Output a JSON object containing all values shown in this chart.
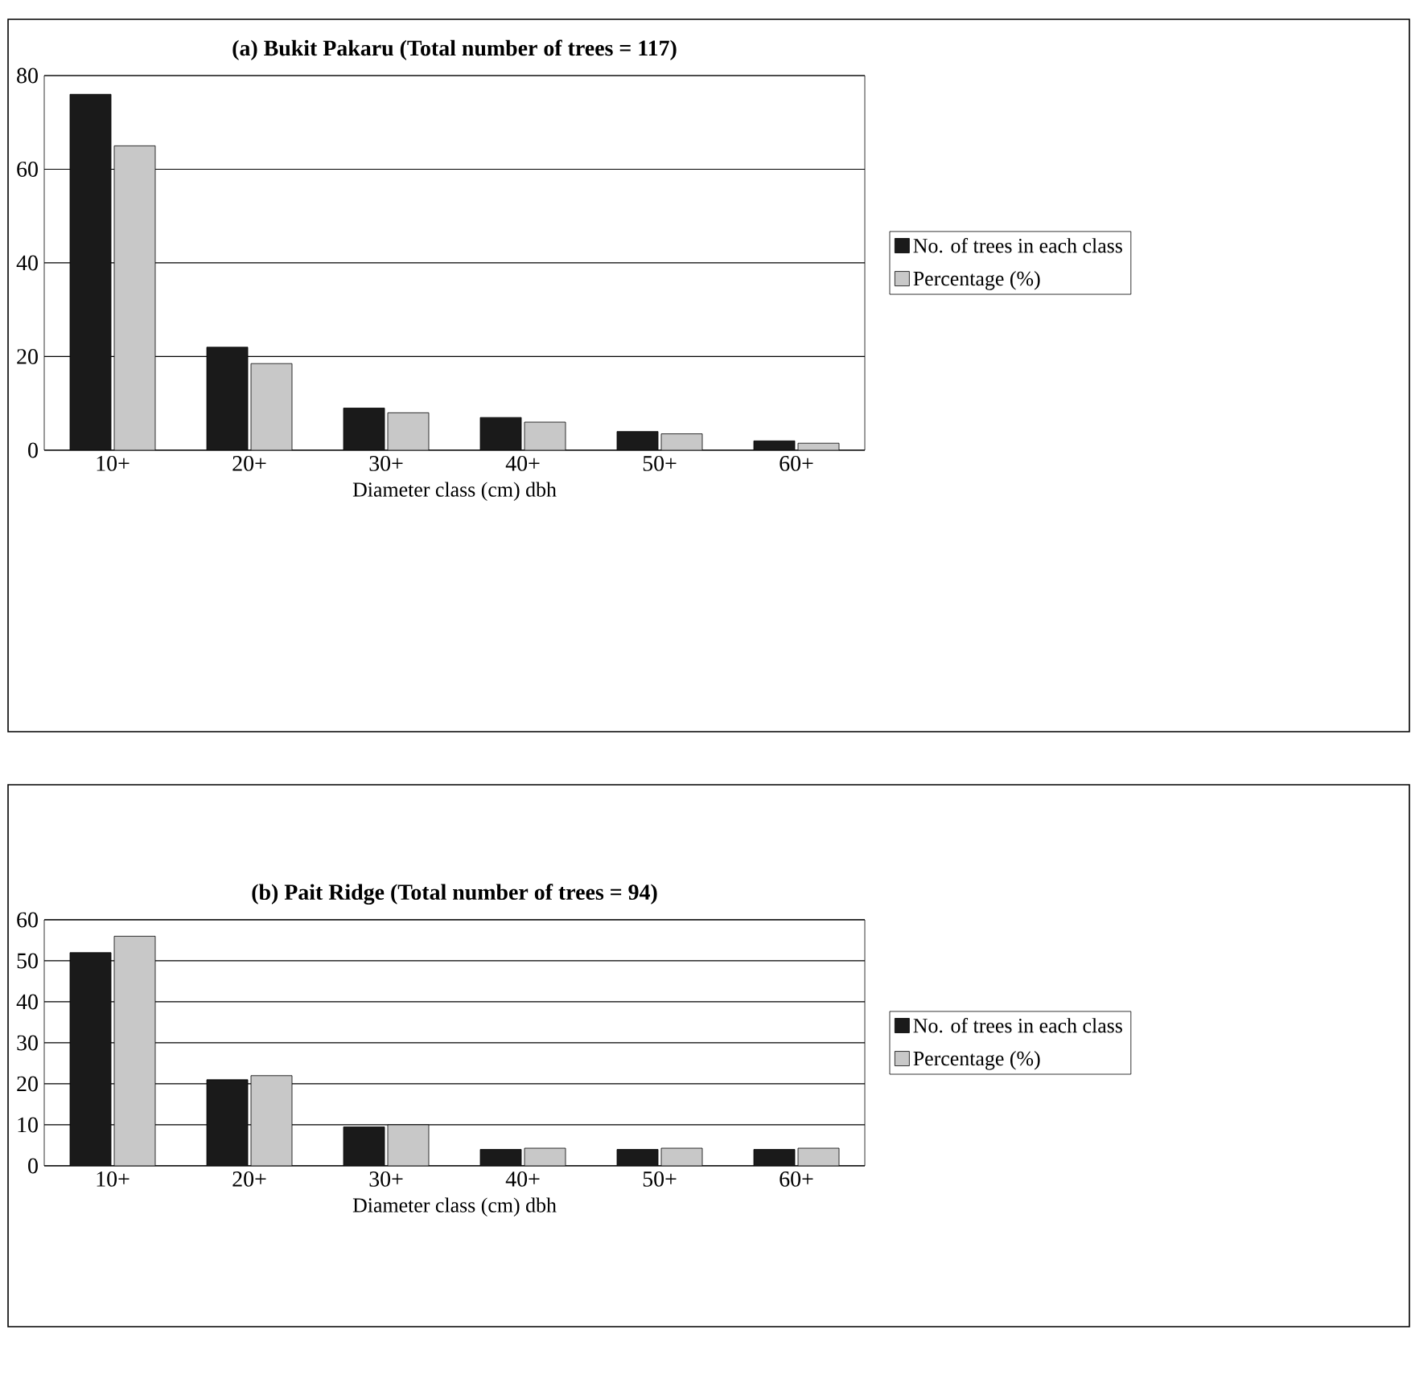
{
  "chart_data": [
    {
      "type": "bar",
      "title": "(a) Bukit Pakaru (Total number of trees = 117)",
      "xlabel": "Diameter class (cm) dbh",
      "categories": [
        "10+",
        "20+",
        "30+",
        "40+",
        "50+",
        "60+"
      ],
      "series": [
        {
          "name": "No. of trees in each class",
          "color": "#1a1a1a",
          "values": [
            76,
            22,
            9,
            7,
            4,
            2
          ]
        },
        {
          "name": "Percentage (%)",
          "color": "#c8c8c8",
          "values": [
            65,
            18.5,
            8,
            6,
            3.5,
            1.5
          ]
        }
      ],
      "ylim": [
        0,
        80
      ],
      "yticks": [
        0,
        20,
        40,
        60,
        80
      ],
      "grid": "y",
      "legend": "right"
    },
    {
      "type": "bar",
      "title": "(b) Pait Ridge (Total number of trees = 94)",
      "xlabel": "Diameter class (cm) dbh",
      "categories": [
        "10+",
        "20+",
        "30+",
        "40+",
        "50+",
        "60+"
      ],
      "series": [
        {
          "name": "No. of trees in each class",
          "color": "#1a1a1a",
          "values": [
            52,
            21,
            9.5,
            4,
            4,
            4
          ]
        },
        {
          "name": "Percentage (%)",
          "color": "#c8c8c8",
          "values": [
            56,
            22,
            10,
            4.3,
            4.3,
            4.3
          ]
        }
      ],
      "ylim": [
        0,
        60
      ],
      "yticks": [
        0,
        10,
        20,
        30,
        40,
        50,
        60
      ],
      "grid": "y",
      "legend": "right"
    }
  ]
}
